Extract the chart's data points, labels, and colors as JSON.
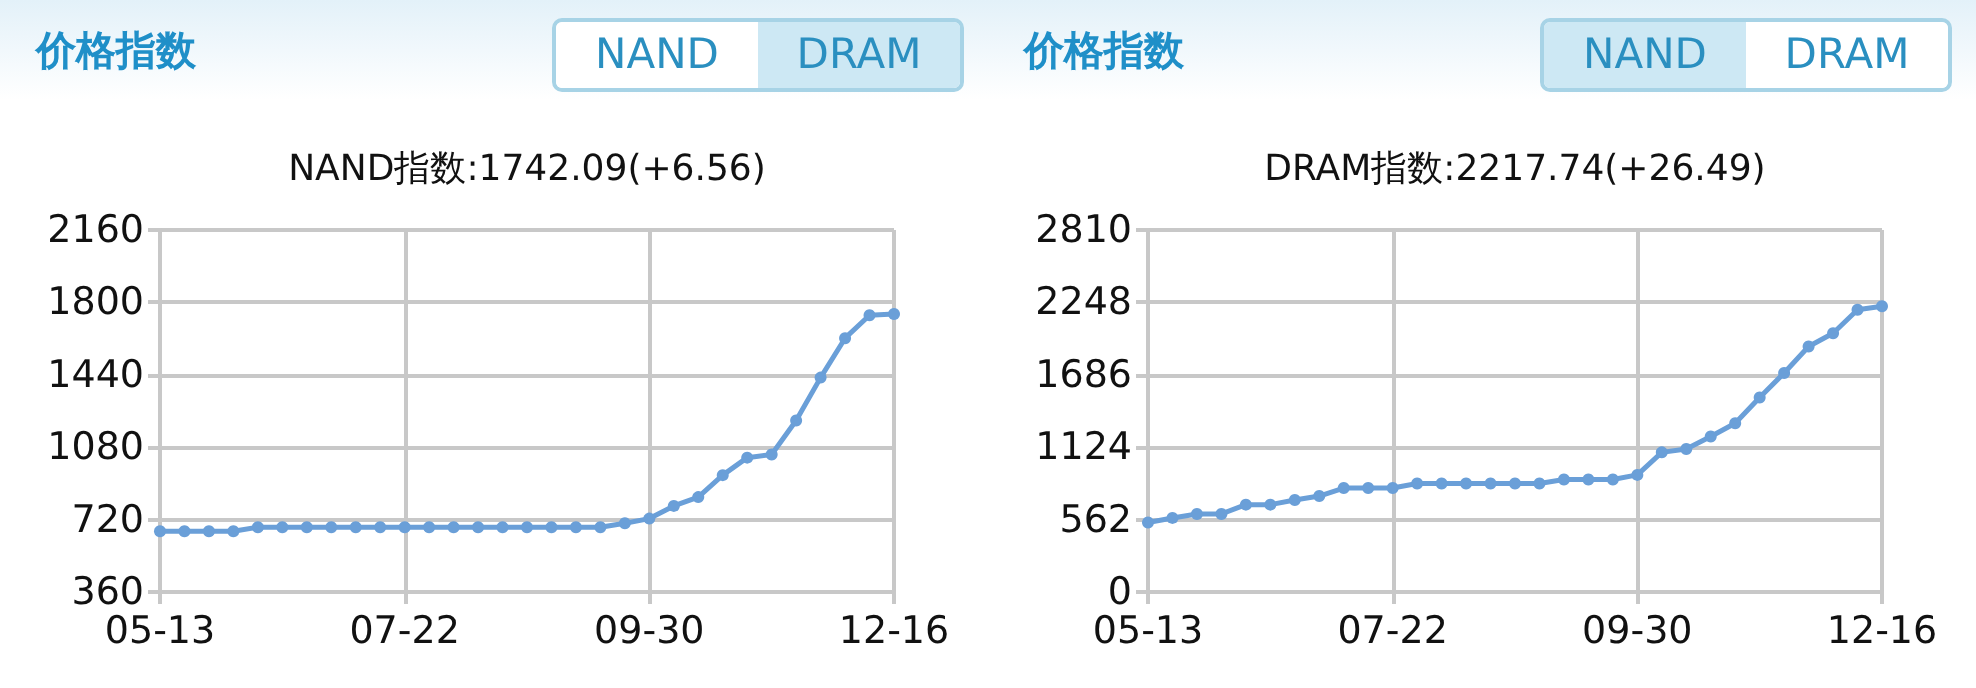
{
  "chart_data": [
    {
      "type": "line",
      "title": "价格指数",
      "subtitle": "NAND指数:1742.09(+6.56)",
      "annotations": [
        "NAND",
        "DRAM"
      ],
      "categories": [
        "05-13",
        null,
        null,
        null,
        null,
        null,
        null,
        null,
        null,
        null,
        "07-22",
        null,
        null,
        null,
        null,
        null,
        null,
        null,
        null,
        null,
        "09-30",
        null,
        null,
        null,
        null,
        null,
        null,
        null,
        null,
        null,
        "12-16"
      ],
      "series": [
        {
          "color": "#6a9fd8",
          "values": [
            662,
            662,
            662,
            662,
            682,
            682,
            682,
            682,
            682,
            682,
            682,
            682,
            682,
            682,
            682,
            682,
            682,
            682,
            682,
            702,
            725,
            788,
            832,
            941,
            1028,
            1044,
            1213,
            1426,
            1622,
            1736,
            1742
          ]
        }
      ],
      "ylim": [
        360,
        2160
      ],
      "yticks": [
        360,
        720,
        1080,
        1440,
        1800,
        2160
      ],
      "grid": true,
      "marker": "circle",
      "line_style": "solid"
    },
    {
      "type": "line",
      "title": "价格指数",
      "subtitle": "DRAM指数:2217.74(+26.49)",
      "annotations": [
        "NAND",
        "DRAM"
      ],
      "categories": [
        "05-13",
        null,
        null,
        null,
        null,
        null,
        null,
        null,
        null,
        null,
        "07-22",
        null,
        null,
        null,
        null,
        null,
        null,
        null,
        null,
        null,
        "09-30",
        null,
        null,
        null,
        null,
        null,
        null,
        null,
        null,
        null,
        "12-16"
      ],
      "series": [
        {
          "color": "#6a9fd8",
          "values": [
            539,
            575,
            606,
            606,
            678,
            678,
            714,
            745,
            807,
            807,
            807,
            842,
            842,
            842,
            842,
            842,
            842,
            873,
            873,
            873,
            909,
            1084,
            1110,
            1207,
            1310,
            1510,
            1700,
            1906,
            2009,
            2191,
            2218
          ]
        }
      ],
      "ylim": [
        0,
        2810
      ],
      "yticks": [
        0,
        562,
        1124,
        1686,
        2248,
        2810
      ],
      "grid": true,
      "marker": "circle",
      "line_style": "solid"
    }
  ]
}
